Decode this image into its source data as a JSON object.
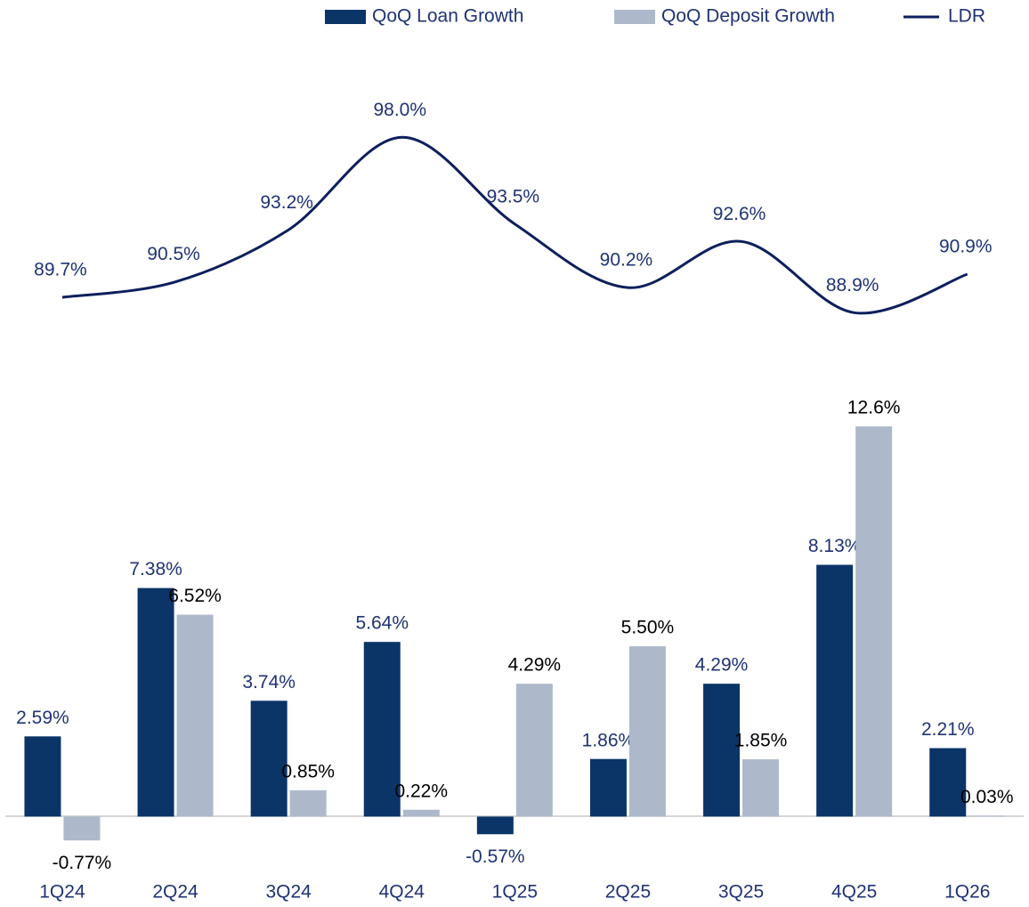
{
  "chart_data": {
    "type": "bar",
    "categories": [
      "1Q24",
      "2Q24",
      "3Q24",
      "4Q24",
      "1Q25",
      "2Q25",
      "3Q25",
      "4Q25",
      "1Q26"
    ],
    "series": [
      {
        "name": "QoQ Loan Growth",
        "type": "bar",
        "color": "#0b3467",
        "label_color": "#1f3374",
        "values": [
          2.59,
          7.38,
          3.74,
          5.64,
          -0.57,
          1.86,
          4.29,
          8.13,
          2.21
        ],
        "value_labels": [
          "2.59%",
          "7.38%",
          "3.74%",
          "5.64%",
          "-0.57%",
          "1.86%",
          "4.29%",
          "8.13%",
          "2.21%"
        ]
      },
      {
        "name": "QoQ Deposit Growth",
        "type": "bar",
        "color": "#adb9cb",
        "label_color": "#000000",
        "values": [
          -0.77,
          6.52,
          0.85,
          0.22,
          4.29,
          5.5,
          1.85,
          12.6,
          0.03
        ],
        "value_labels": [
          "-0.77%",
          "6.52%",
          "0.85%",
          "0.22%",
          "4.29%",
          "5.50%",
          "1.85%",
          "12.6%",
          "0.03%"
        ]
      },
      {
        "name": "LDR",
        "type": "line",
        "axis": "y2",
        "color": "#0d1f5c",
        "label_color": "#1f3374",
        "values": [
          89.7,
          90.5,
          93.2,
          98.0,
          93.5,
          90.2,
          92.6,
          88.9,
          90.9
        ],
        "value_labels": [
          "89.7%",
          "90.5%",
          "93.2%",
          "98.0%",
          "93.5%",
          "90.2%",
          "92.6%",
          "88.9%",
          "90.9%"
        ]
      }
    ],
    "ylim": [
      -2,
      22
    ],
    "y2lim": [
      80,
      100
    ],
    "legend": "top-right"
  }
}
